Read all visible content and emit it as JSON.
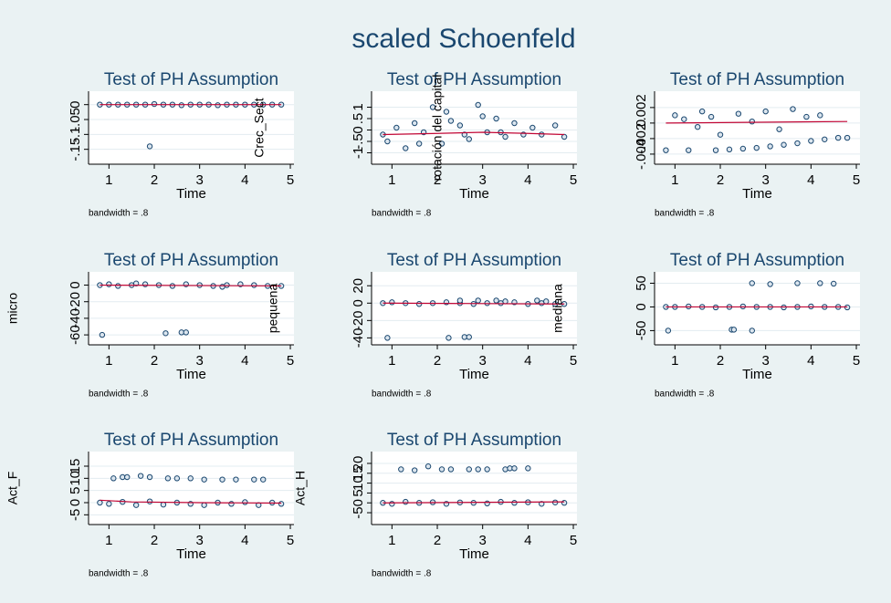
{
  "title": "scaled Schoenfeld",
  "chart_data": [
    {
      "type": "scatter",
      "title": "Test of PH Assumption",
      "xlabel": "Time",
      "note": "bandwidth = .8",
      "xlim": [
        0.55,
        5.08
      ],
      "ylim": [
        -0.2,
        0.045
      ],
      "xticks": [
        1,
        2,
        3,
        4,
        5
      ],
      "yticks": [
        {
          "value": -0.15,
          "label": "-.15"
        },
        {
          "value": -0.1,
          "label": "-.1"
        },
        {
          "value": -0.05,
          "label": "-.05"
        },
        0
      ],
      "grid": true,
      "marker_color": "#1a476f",
      "line_color": "#c10534",
      "points": {
        "x": [
          0.8,
          1.0,
          1.2,
          1.4,
          1.6,
          1.8,
          2.0,
          2.2,
          2.4,
          2.6,
          2.8,
          3.0,
          3.2,
          3.4,
          3.6,
          3.8,
          4.0,
          4.2,
          4.4,
          4.6,
          4.8,
          1.9
        ],
        "y": [
          0,
          0,
          0,
          0,
          0,
          0,
          0.002,
          0,
          0,
          -0.002,
          0,
          0,
          0,
          -0.002,
          0,
          0,
          0,
          0,
          0,
          0,
          0,
          -0.14
        ]
      },
      "smooth": {
        "x": [
          0.8,
          4.8
        ],
        "y": [
          0,
          0
        ]
      }
    },
    {
      "type": "scatter",
      "title": "Test of PH Assumption",
      "xlabel": "Time",
      "ylabel": "Crec_Sect",
      "note": "bandwidth = .8",
      "xlim": [
        0.55,
        5.08
      ],
      "ylim": [
        -1.5,
        1.7
      ],
      "xticks": [
        1,
        2,
        3,
        4,
        5
      ],
      "yticks": [
        -1,
        {
          "value": -0.5,
          "label": "-.5"
        },
        0,
        {
          "value": 0.5,
          "label": ".5"
        },
        1
      ],
      "grid": true,
      "marker_color": "#1a476f",
      "line_color": "#c10534",
      "points": {
        "x": [
          0.8,
          0.9,
          1.1,
          1.3,
          1.5,
          1.7,
          1.9,
          2.1,
          2.3,
          2.5,
          2.7,
          2.9,
          3.1,
          3.3,
          3.5,
          3.7,
          3.9,
          4.1,
          4.3,
          4.6,
          4.8,
          2.2,
          2.6,
          3.0,
          1.6,
          3.4
        ],
        "y": [
          -0.2,
          -0.5,
          0.1,
          -0.8,
          0.3,
          -0.1,
          1.0,
          -0.6,
          0.4,
          0.2,
          -0.4,
          1.1,
          -0.1,
          0.5,
          -0.3,
          0.3,
          -0.2,
          0.1,
          -0.2,
          0.2,
          -0.3,
          0.8,
          -0.2,
          0.6,
          -0.6,
          -0.1
        ]
      },
      "smooth": {
        "x": [
          0.8,
          2,
          3,
          4,
          4.8
        ],
        "y": [
          -0.2,
          -0.15,
          -0.1,
          -0.15,
          -0.2
        ]
      }
    },
    {
      "type": "scatter",
      "title": "Test of PH Assumption",
      "xlabel": "Time",
      "ylabel": "rotación del capital",
      "note": "bandwidth = .8",
      "xlim": [
        0.55,
        5.08
      ],
      "ylim": [
        -0.0053,
        0.0041
      ],
      "xticks": [
        1,
        2,
        3,
        4,
        5
      ],
      "yticks": [
        {
          "value": -0.004,
          "label": "-.004"
        },
        {
          "value": -0.002,
          "label": "-.002"
        },
        0,
        {
          "value": 0.002,
          "label": ".002"
        }
      ],
      "grid": true,
      "marker_color": "#1a476f",
      "line_color": "#c10534",
      "points": {
        "x": [
          0.8,
          1.0,
          1.3,
          1.6,
          1.9,
          2.2,
          2.5,
          2.8,
          3.1,
          3.4,
          3.7,
          4.0,
          4.3,
          4.6,
          1.2,
          1.8,
          2.4,
          3.0,
          3.6,
          4.2,
          4.8,
          1.5,
          2.7,
          3.9,
          2.0,
          3.3
        ],
        "y": [
          -0.0035,
          0.001,
          -0.0035,
          0.0015,
          -0.0035,
          -0.0034,
          -0.0033,
          -0.0032,
          -0.003,
          -0.0028,
          -0.0026,
          -0.0023,
          -0.0021,
          -0.0019,
          0.0005,
          0.0008,
          0.0012,
          0.0015,
          0.0018,
          0.001,
          -0.0019,
          -0.0005,
          0.0002,
          0.0008,
          -0.0015,
          -0.0008
        ]
      },
      "smooth": {
        "x": [
          0.8,
          4.8
        ],
        "y": [
          0,
          0.0002
        ]
      }
    },
    {
      "type": "scatter",
      "title": "Test of PH Assumption",
      "xlabel": "Time",
      "ylabel": "micro",
      "note": "bandwidth = .8",
      "xlim": [
        0.55,
        5.08
      ],
      "ylim": [
        -72,
        16
      ],
      "xticks": [
        1,
        2,
        3,
        4,
        5
      ],
      "yticks": [
        -60,
        -40,
        -20,
        0
      ],
      "grid": true,
      "marker_color": "#1a476f",
      "line_color": "#c10534",
      "points": {
        "x": [
          0.8,
          1.0,
          1.2,
          1.5,
          1.8,
          2.1,
          2.4,
          2.7,
          3.0,
          3.3,
          3.6,
          3.9,
          4.2,
          4.5,
          4.8,
          0.85,
          2.25,
          2.6,
          2.7,
          1.6,
          3.5
        ],
        "y": [
          0,
          1,
          -1,
          0,
          1,
          0,
          -1,
          1,
          0,
          -1,
          0,
          1,
          0,
          -1,
          -1,
          -60,
          -58,
          -57,
          -57,
          2,
          -2
        ]
      },
      "smooth": {
        "x": [
          0.8,
          4.8
        ],
        "y": [
          0,
          -1
        ]
      }
    },
    {
      "type": "scatter",
      "title": "Test of PH Assumption",
      "xlabel": "Time",
      "ylabel": "pequena",
      "note": "bandwidth = .8",
      "xlim": [
        0.55,
        5.08
      ],
      "ylim": [
        -48,
        36
      ],
      "xticks": [
        1,
        2,
        3,
        4,
        5
      ],
      "yticks": [
        -40,
        -20,
        0,
        20
      ],
      "grid": true,
      "marker_color": "#1a476f",
      "line_color": "#c10534",
      "points": {
        "x": [
          0.8,
          1.0,
          1.3,
          1.6,
          1.9,
          2.2,
          2.5,
          2.8,
          3.1,
          3.4,
          3.7,
          4.0,
          4.3,
          4.6,
          4.8,
          0.9,
          2.25,
          2.6,
          2.7,
          2.5,
          2.9,
          3.3,
          3.5,
          4.2,
          4.4
        ],
        "y": [
          0,
          1,
          0,
          -1,
          0,
          1,
          0,
          -1,
          0,
          0,
          1,
          -1,
          0,
          -1,
          -1,
          -40,
          -40,
          -39,
          -39,
          3,
          3,
          3,
          2,
          3,
          2
        ]
      },
      "smooth": {
        "x": [
          0.8,
          4.8
        ],
        "y": [
          0,
          -1
        ]
      }
    },
    {
      "type": "scatter",
      "title": "Test of PH Assumption",
      "xlabel": "Time",
      "ylabel": "mediana",
      "note": "bandwidth = .8",
      "xlim": [
        0.55,
        5.08
      ],
      "ylim": [
        -80,
        74
      ],
      "xticks": [
        1,
        2,
        3,
        4,
        5
      ],
      "yticks": [
        -50,
        0,
        50
      ],
      "grid": true,
      "marker_color": "#1a476f",
      "line_color": "#c10534",
      "points": {
        "x": [
          0.8,
          1.0,
          1.3,
          1.6,
          1.9,
          2.2,
          2.5,
          2.8,
          3.1,
          3.4,
          3.7,
          4.0,
          4.3,
          4.6,
          4.8,
          0.85,
          2.25,
          2.3,
          2.7,
          2.7,
          3.1,
          3.7,
          4.2,
          4.5
        ],
        "y": [
          0,
          0,
          1,
          0,
          -1,
          0,
          1,
          0,
          0,
          -1,
          0,
          1,
          0,
          0,
          -1,
          -50,
          -48,
          -48,
          -50,
          50,
          48,
          50,
          50,
          49
        ]
      },
      "smooth": {
        "x": [
          0.8,
          4.8
        ],
        "y": [
          0,
          0
        ]
      }
    },
    {
      "type": "scatter",
      "title": "Test of PH Assumption",
      "xlabel": "Time",
      "ylabel": "Act_F",
      "note": "bandwidth = .8",
      "xlim": [
        0.55,
        5.08
      ],
      "ylim": [
        -9,
        21
      ],
      "xticks": [
        1,
        2,
        3,
        4,
        5
      ],
      "yticks": [
        -5,
        0,
        5,
        10,
        15
      ],
      "grid": true,
      "marker_color": "#1a476f",
      "line_color": "#c10534",
      "points": {
        "x": [
          0.8,
          1.0,
          1.3,
          1.6,
          1.9,
          2.2,
          2.5,
          2.8,
          3.1,
          3.4,
          3.7,
          4.0,
          4.3,
          4.6,
          4.8,
          1.1,
          1.3,
          1.4,
          1.7,
          1.9,
          2.3,
          2.5,
          2.8,
          3.1,
          3.5,
          3.8,
          4.2,
          4.4
        ],
        "y": [
          0,
          -0.5,
          0.3,
          -1,
          0.5,
          -0.8,
          0,
          -0.5,
          -1,
          0,
          -0.5,
          0.2,
          -1,
          0,
          -0.5,
          10,
          10.5,
          10.5,
          11,
          10.5,
          10,
          10,
          10,
          9.5,
          9.5,
          9.5,
          9.5,
          9.5
        ]
      },
      "smooth": {
        "x": [
          0.8,
          1.5,
          3,
          4.8
        ],
        "y": [
          1,
          0.3,
          0,
          -0.2
        ]
      }
    },
    {
      "type": "scatter",
      "title": "Test of PH Assumption",
      "xlabel": "Time",
      "ylabel": "Act_H",
      "note": "bandwidth = .8",
      "xlim": [
        0.55,
        5.08
      ],
      "ylim": [
        -11,
        26
      ],
      "xticks": [
        1,
        2,
        3,
        4,
        5
      ],
      "yticks": [
        -5,
        0,
        5,
        10,
        15,
        20
      ],
      "grid": true,
      "marker_color": "#1a476f",
      "line_color": "#c10534",
      "points": {
        "x": [
          0.8,
          1.0,
          1.3,
          1.6,
          1.9,
          2.2,
          2.5,
          2.8,
          3.1,
          3.4,
          3.7,
          4.0,
          4.3,
          4.6,
          4.8,
          1.2,
          1.5,
          1.8,
          2.1,
          2.3,
          2.7,
          2.9,
          3.1,
          3.5,
          3.6,
          3.7,
          4.0
        ],
        "y": [
          0,
          -0.5,
          0.5,
          0,
          0.3,
          -0.5,
          0.2,
          0,
          -0.3,
          0.5,
          0,
          0.3,
          -0.5,
          0.2,
          0,
          17,
          16.5,
          18.5,
          17,
          17,
          17,
          17,
          17,
          17,
          17.5,
          17.5,
          17.5
        ]
      },
      "smooth": {
        "x": [
          0.8,
          4.8
        ],
        "y": [
          0,
          0.5
        ]
      }
    }
  ]
}
